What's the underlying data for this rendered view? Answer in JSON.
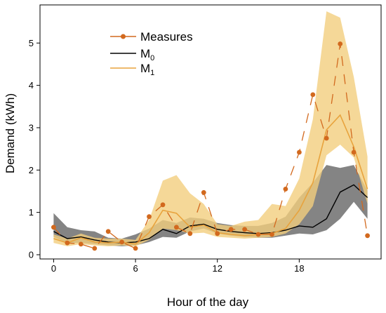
{
  "chart_data": {
    "type": "line",
    "xlabel": "Hour of the day",
    "ylabel": "Demand (kWh)",
    "xlim": [
      -1,
      24
    ],
    "ylim": [
      -0.1,
      5.9
    ],
    "xticks": [
      0,
      6,
      12,
      18
    ],
    "xtick_labels": [
      "0",
      "6",
      "12",
      "18"
    ],
    "yticks": [
      0,
      1,
      2,
      3,
      4,
      5
    ],
    "ytick_labels": [
      "0",
      "1",
      "2",
      "3",
      "4",
      "5"
    ],
    "grid": false,
    "legend_position": "top-left",
    "legend": {
      "measures": "Measures",
      "m0_main": "M",
      "m0_sub": "0",
      "m1_main": "M",
      "m1_sub": "1"
    },
    "x": [
      0,
      1,
      2,
      3,
      4,
      5,
      6,
      7,
      8,
      9,
      10,
      11,
      12,
      13,
      14,
      15,
      16,
      17,
      18,
      19,
      20,
      21,
      22,
      23
    ],
    "series": [
      {
        "key": "measures",
        "color": "#D2691E",
        "values": [
          0.65,
          0.28,
          0.25,
          0.15,
          0.55,
          0.3,
          0.15,
          0.9,
          1.18,
          0.65,
          0.5,
          1.47,
          0.5,
          0.6,
          0.6,
          0.48,
          0.48,
          1.55,
          2.42,
          3.78,
          2.75,
          4.98,
          2.42,
          0.45
        ]
      },
      {
        "key": "m0",
        "color": "#000000",
        "values": [
          0.55,
          0.38,
          0.42,
          0.35,
          0.3,
          0.28,
          0.3,
          0.38,
          0.6,
          0.5,
          0.68,
          0.72,
          0.6,
          0.55,
          0.52,
          0.5,
          0.52,
          0.58,
          0.68,
          0.65,
          0.85,
          1.48,
          1.65,
          1.35
        ],
        "band_low": [
          0.42,
          0.28,
          0.28,
          0.25,
          0.22,
          0.2,
          0.22,
          0.3,
          0.42,
          0.4,
          0.55,
          0.62,
          0.5,
          0.45,
          0.42,
          0.4,
          0.4,
          0.45,
          0.5,
          0.48,
          0.58,
          0.85,
          1.25,
          0.85
        ],
        "band_high": [
          0.98,
          0.65,
          0.58,
          0.55,
          0.4,
          0.38,
          0.48,
          0.62,
          0.82,
          0.75,
          0.88,
          0.85,
          0.75,
          0.7,
          0.68,
          0.68,
          0.75,
          0.9,
          1.35,
          1.7,
          2.12,
          2.05,
          2.12,
          1.52
        ]
      },
      {
        "key": "m1",
        "color": "#E8A33D",
        "band_color": "#F3CE7E",
        "values": [
          0.38,
          0.28,
          0.4,
          0.3,
          0.28,
          0.3,
          0.25,
          0.52,
          1.05,
          0.98,
          0.65,
          0.7,
          0.52,
          0.48,
          0.45,
          0.48,
          0.5,
          0.62,
          1.05,
          1.7,
          2.95,
          3.3,
          2.55,
          1.55
        ],
        "band_low": [
          0.28,
          0.2,
          0.25,
          0.22,
          0.2,
          0.22,
          0.2,
          0.35,
          0.62,
          0.58,
          0.5,
          0.52,
          0.42,
          0.4,
          0.38,
          0.4,
          0.42,
          0.5,
          0.72,
          1.15,
          2.35,
          2.6,
          2.3,
          1.2
        ],
        "band_high": [
          0.48,
          0.38,
          0.5,
          0.4,
          0.38,
          0.38,
          0.35,
          0.82,
          1.75,
          1.88,
          1.45,
          1.2,
          0.72,
          0.68,
          0.78,
          0.82,
          1.2,
          1.15,
          1.8,
          3.2,
          5.75,
          5.6,
          4.2,
          2.32
        ]
      }
    ]
  }
}
